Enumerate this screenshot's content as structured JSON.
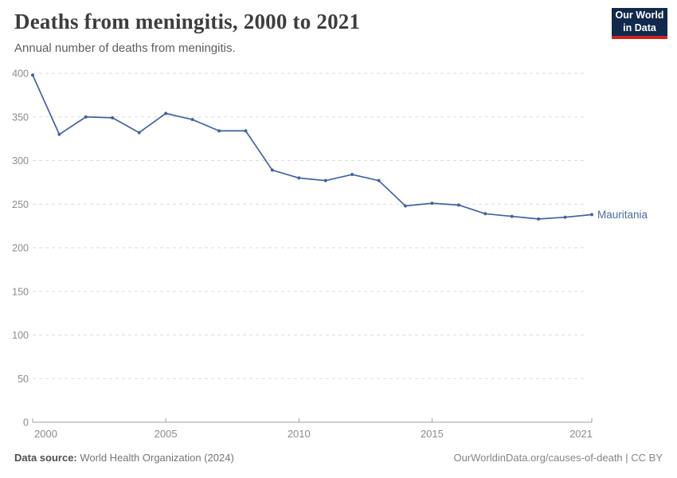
{
  "logo": {
    "line1": "Our World",
    "line2": "in Data"
  },
  "footer": {
    "source_label": "Data source:",
    "source_value": " World Health Organization (2024)",
    "credit": "OurWorldinData.org/causes-of-death | CC BY"
  },
  "chart_data": {
    "type": "line",
    "title": "Deaths from meningitis, 2000 to 2021",
    "subtitle": "Annual number of deaths from meningitis.",
    "x": [
      2000,
      2001,
      2002,
      2003,
      2004,
      2005,
      2006,
      2007,
      2008,
      2009,
      2010,
      2011,
      2012,
      2013,
      2014,
      2015,
      2016,
      2017,
      2018,
      2019,
      2020,
      2021
    ],
    "series": [
      {
        "name": "Mauritania",
        "values": [
          398,
          330,
          350,
          349,
          332,
          354,
          347,
          334,
          334,
          289,
          280,
          277,
          284,
          277,
          248,
          251,
          249,
          239,
          236,
          233,
          235,
          238
        ]
      }
    ],
    "xlabel": "",
    "ylabel": "",
    "ylim": [
      0,
      400
    ],
    "yticks": [
      0,
      50,
      100,
      150,
      200,
      250,
      300,
      350,
      400
    ],
    "xticks": [
      2000,
      2005,
      2010,
      2015,
      2021
    ],
    "grid": "horizontal-dashed",
    "legend_position": "end-of-line-label",
    "colors": {
      "line": "#4262a3",
      "series_label": "#4c6a9c",
      "grid": "#dbdbdb",
      "axis": "#9d9d9d",
      "tick_label": "#8c8c8c"
    }
  }
}
